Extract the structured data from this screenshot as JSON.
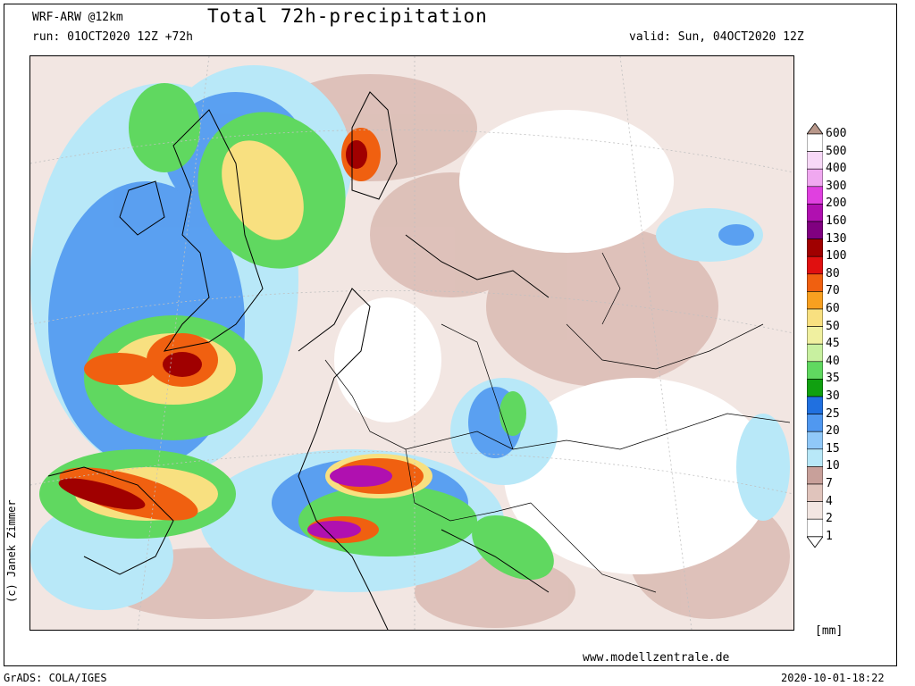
{
  "header": {
    "model": "WRF-ARW @12km",
    "title": "Total 72h-precipitation",
    "run": "run: 01OCT2020 12Z +72h",
    "valid": "valid: Sun, 04OCT2020 12Z"
  },
  "credit": "(c) Janek Zimmer",
  "website": "www.modellzentrale.de",
  "footer": {
    "software": "GrADS: COLA/IGES",
    "timestamp": "2020-10-01-18:22"
  },
  "legend": {
    "unit": "[mm]",
    "levels": [
      "600",
      "500",
      "400",
      "300",
      "200",
      "160",
      "130",
      "100",
      "80",
      "70",
      "60",
      "50",
      "45",
      "40",
      "35",
      "30",
      "25",
      "20",
      "15",
      "10",
      "7",
      "4",
      "2",
      "1"
    ],
    "colors": [
      "#b8978a",
      "#ffffff",
      "#f7d8f7",
      "#f0a8f0",
      "#e040e0",
      "#b010b0",
      "#800080",
      "#a00000",
      "#e01010",
      "#f06010",
      "#f8a020",
      "#f8e080",
      "#f0f0a0",
      "#c8f0a0",
      "#60d860",
      "#10a010",
      "#2070e0",
      "#5098f0",
      "#90c8f8",
      "#b8e8f8",
      "#c8a09a",
      "#e0c4bc",
      "#f2e6e2",
      "#ffffff"
    ]
  }
}
